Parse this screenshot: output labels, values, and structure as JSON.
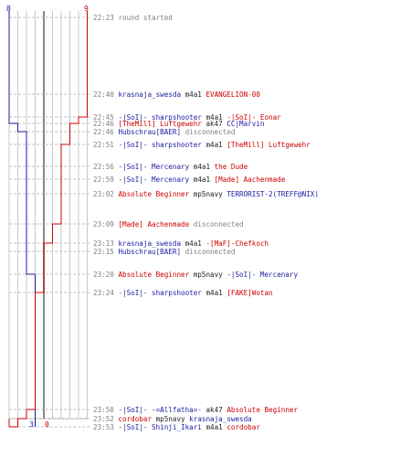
{
  "scores": {
    "blue_start": "8",
    "red_start": "9",
    "blue_end": "3",
    "red_end": "0"
  },
  "colors": {
    "blue": "#1a1aa0",
    "red": "#cc0000",
    "time": "#808080",
    "grid": "#c8c8c8",
    "dash": "#c0c0c0"
  },
  "events": [
    {
      "time": "22:23",
      "parts": [
        {
          "t": "round started",
          "c": "grey"
        }
      ]
    },
    {
      "time": "22:40",
      "parts": [
        {
          "t": "krasnaja_swesda",
          "c": "blue"
        },
        {
          "t": " m4a1 ",
          "c": "dark"
        },
        {
          "t": "EVANGELION-00",
          "c": "red"
        }
      ]
    },
    {
      "time": "22:45",
      "parts": [
        {
          "t": "-|SoI|- sharpshooter",
          "c": "blue"
        },
        {
          "t": " m4a1 ",
          "c": "dark"
        },
        {
          "t": "-|SoI|- Eonar",
          "c": "red"
        }
      ]
    },
    {
      "time": "22:46",
      "parts": [
        {
          "t": "[TheMill] Luftgewehr",
          "c": "red"
        },
        {
          "t": " ak47 ",
          "c": "dark"
        },
        {
          "t": "CC|Marvin",
          "c": "blue"
        }
      ]
    },
    {
      "time": "22:46",
      "parts": [
        {
          "t": "Hubschrau[BAER]",
          "c": "blue"
        },
        {
          "t": " disconnected",
          "c": "grey"
        }
      ]
    },
    {
      "time": "22:51",
      "parts": [
        {
          "t": "-|SoI|- sharpshooter",
          "c": "blue"
        },
        {
          "t": " m4a1 ",
          "c": "dark"
        },
        {
          "t": "[TheMill] Luftgewehr",
          "c": "red"
        }
      ]
    },
    {
      "time": "22:56",
      "parts": [
        {
          "t": "-|SoI|- Mercenary",
          "c": "blue"
        },
        {
          "t": " m4a1 ",
          "c": "dark"
        },
        {
          "t": "the Dude",
          "c": "red"
        }
      ]
    },
    {
      "time": "22:59",
      "parts": [
        {
          "t": "-|SoI|- Mercenary",
          "c": "blue"
        },
        {
          "t": " m4a1 ",
          "c": "dark"
        },
        {
          "t": "[Made] Aachenmade",
          "c": "red"
        }
      ]
    },
    {
      "time": "23:02",
      "parts": [
        {
          "t": "Absolute Beginner",
          "c": "red"
        },
        {
          "t": " mp5navy ",
          "c": "dark"
        },
        {
          "t": "TERRORIST-2(TREFF@NIX)",
          "c": "blue"
        }
      ]
    },
    {
      "time": "23:09",
      "parts": [
        {
          "t": "[Made] Aachenmade",
          "c": "red"
        },
        {
          "t": " disconnected",
          "c": "grey"
        }
      ]
    },
    {
      "time": "23:13",
      "parts": [
        {
          "t": "krasnaja_swesda",
          "c": "blue"
        },
        {
          "t": " m4a1 ",
          "c": "dark"
        },
        {
          "t": "-[MaF]-Chefkoch",
          "c": "red"
        }
      ]
    },
    {
      "time": "23:15",
      "parts": [
        {
          "t": "Hubschrau[BAER]",
          "c": "blue"
        },
        {
          "t": " disconnected",
          "c": "grey"
        }
      ]
    },
    {
      "time": "23:20",
      "parts": [
        {
          "t": "Absolute Beginner",
          "c": "red"
        },
        {
          "t": " mp5navy ",
          "c": "dark"
        },
        {
          "t": "-|SoI|- Mercenary",
          "c": "blue"
        }
      ]
    },
    {
      "time": "23:24",
      "parts": [
        {
          "t": "-|SoI|- sharpshooter",
          "c": "blue"
        },
        {
          "t": " m4a1 ",
          "c": "dark"
        },
        {
          "t": "[FAKE]Wotan",
          "c": "red"
        }
      ]
    },
    {
      "time": "23:50",
      "parts": [
        {
          "t": "-|SoI|- -=Allfatha=-",
          "c": "blue"
        },
        {
          "t": " ak47 ",
          "c": "dark"
        },
        {
          "t": "Absolute Beginner",
          "c": "red"
        }
      ]
    },
    {
      "time": "23:52",
      "parts": [
        {
          "t": "cordobar",
          "c": "red"
        },
        {
          "t": " mp5navy ",
          "c": "dark"
        },
        {
          "t": "krasnaja_swesda",
          "c": "blue"
        }
      ]
    },
    {
      "time": "23:53",
      "parts": [
        {
          "t": "-|SoI|- Shinji_Ikari",
          "c": "blue"
        },
        {
          "t": " m4a1 ",
          "c": "dark"
        },
        {
          "t": "cordobar",
          "c": "red"
        }
      ]
    }
  ]
}
